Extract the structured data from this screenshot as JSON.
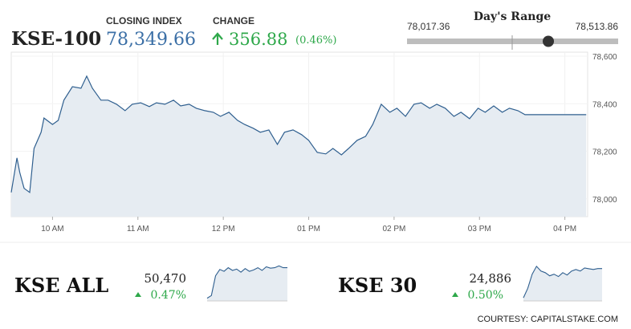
{
  "header": {
    "symbol": "KSE-100",
    "closing_label": "CLOSING INDEX",
    "closing_index": {
      "value": 78349.66,
      "label": "78,349.66"
    },
    "change_label": "CHANGE",
    "change": "356.88",
    "change_percent": "(0.46%)",
    "range_title": "Day's Range",
    "range_low": {
      "value": 78017.36,
      "label": "78,017.36"
    },
    "range_high": {
      "value": 78513.86,
      "label": "78,513.86"
    }
  },
  "indices": [
    {
      "name": "KSE ALL",
      "value": "50,470",
      "change": "0.47%"
    },
    {
      "name": "KSE 30",
      "value": "24,886",
      "change": "0.50%"
    }
  ],
  "courtesy": "COURTESY: CAPITALSTAKE.COM",
  "chart_data": [
    {
      "type": "line",
      "color": "#2f5f8f",
      "grid": true,
      "x": [
        571,
        575,
        577,
        580,
        584,
        587,
        592,
        594,
        600,
        604,
        608,
        614,
        620,
        624,
        628,
        634,
        639,
        645,
        651,
        656,
        662,
        668,
        673,
        679,
        685,
        690,
        696,
        701,
        707,
        713,
        718,
        724,
        730,
        735,
        741,
        746,
        752,
        758,
        763,
        769,
        775,
        780,
        786,
        792,
        797,
        803,
        808,
        814,
        820,
        825,
        831,
        837,
        842,
        848,
        854,
        859,
        865,
        870,
        876,
        882,
        887,
        893,
        899,
        904,
        910,
        916,
        921,
        927,
        932,
        975
      ],
      "values": [
        78027,
        78172,
        78111,
        78044,
        78027,
        78212,
        78280,
        78340,
        78313,
        78330,
        78415,
        78472,
        78465,
        78516,
        78465,
        78415,
        78415,
        78398,
        78371,
        78398,
        78404,
        78388,
        78404,
        78398,
        78415,
        78391,
        78398,
        78381,
        78371,
        78364,
        78347,
        78364,
        78330,
        78313,
        78297,
        78280,
        78290,
        78229,
        78280,
        78290,
        78270,
        78246,
        78195,
        78189,
        78212,
        78185,
        78212,
        78246,
        78263,
        78313,
        78398,
        78364,
        78381,
        78347,
        78398,
        78404,
        78381,
        78398,
        78381,
        78347,
        78364,
        78337,
        78381,
        78364,
        78391,
        78364,
        78381,
        78371,
        78354,
        78354
      ],
      "xlim": [
        571,
        976
      ],
      "xticks": [
        {
          "value": 600,
          "label": "10 AM"
        },
        {
          "value": 660,
          "label": "11 AM"
        },
        {
          "value": 720,
          "label": "12 PM"
        },
        {
          "value": 780,
          "label": "01 PM"
        },
        {
          "value": 840,
          "label": "02 PM"
        },
        {
          "value": 900,
          "label": "03 PM"
        },
        {
          "value": 960,
          "label": "04 PM"
        }
      ],
      "ylim": [
        77925,
        78617
      ],
      "yticks": [
        {
          "value": 78000,
          "label": "78,000"
        },
        {
          "value": 78200,
          "label": "78,200"
        },
        {
          "value": 78400,
          "label": "78,400"
        },
        {
          "value": 78600,
          "label": "78,600"
        }
      ]
    },
    {
      "type": "sparkline",
      "color": "#2f5f8f",
      "values": [
        50130,
        50160,
        50380,
        50450,
        50430,
        50470,
        50440,
        50455,
        50420,
        50460,
        50430,
        50445,
        50470,
        50440,
        50480,
        50465,
        50470,
        50490,
        50470,
        50470
      ],
      "ylim": [
        50100,
        50520
      ]
    },
    {
      "type": "sparkline",
      "color": "#2f5f8f",
      "values": [
        24700,
        24760,
        24850,
        24900,
        24870,
        24860,
        24840,
        24850,
        24835,
        24860,
        24845,
        24870,
        24880,
        24870,
        24890,
        24885,
        24880,
        24886,
        24886
      ],
      "ylim": [
        24680,
        24920
      ]
    }
  ]
}
